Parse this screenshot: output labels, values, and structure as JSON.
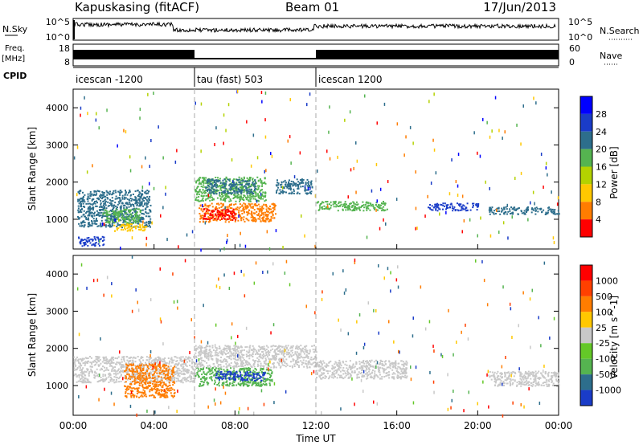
{
  "header": {
    "station": "Kapuskasing (fitACF)",
    "beam": "Beam 01",
    "date": "17/Jun/2013"
  },
  "strips": {
    "nsky_label": "N.Sky",
    "nsky_ticks": [
      "10^5",
      "10^0"
    ],
    "nsearch_label": "N.Search",
    "nsearch_ticks": [
      "10^5",
      "10^0"
    ],
    "freq_label_1": "Freq.",
    "freq_label_2": "[MHz]",
    "freq_ticks": [
      "18",
      "8"
    ],
    "nave_label": "Nave",
    "nave_ticks": [
      "60",
      "0"
    ],
    "cpid_label": "CPID",
    "cpid_segments": [
      {
        "label": "icescan -1200",
        "start_h": 0,
        "end_h": 6
      },
      {
        "label": "tau (fast) 503",
        "start_h": 6,
        "end_h": 12
      },
      {
        "label": "icescan 1200",
        "start_h": 12,
        "end_h": 24
      }
    ]
  },
  "chart_data": [
    {
      "type": "heatmap",
      "name": "power",
      "ylabel": "Slant Range [km]",
      "ylim": [
        200,
        4500
      ],
      "yticks": [
        "1000",
        "2000",
        "3000",
        "4000"
      ],
      "colorbar_label": "Power [dB]",
      "colorbar_ticks": [
        "28",
        "24",
        "20",
        "16",
        "12",
        "8",
        "4"
      ],
      "colors": [
        "#ff0000",
        "#ff7d00",
        "#ffc800",
        "#b4d200",
        "#55b450",
        "#2d6e8c",
        "#1a3cc8",
        "#0000ff"
      ],
      "blobs": [
        {
          "t": [
            0.2,
            3.8
          ],
          "r": [
            800,
            1800
          ],
          "color": "#2d6e8c"
        },
        {
          "t": [
            1.5,
            3.3
          ],
          "r": [
            900,
            1300
          ],
          "color": "#55b450"
        },
        {
          "t": [
            2.0,
            3.6
          ],
          "r": [
            700,
            900
          ],
          "color": "#ffc800"
        },
        {
          "t": [
            0.2,
            1.5
          ],
          "r": [
            300,
            550
          ],
          "color": "#1a3cc8"
        },
        {
          "t": [
            6.2,
            10.0
          ],
          "r": [
            950,
            1450
          ],
          "color": "#ff7d00"
        },
        {
          "t": [
            6.4,
            8.0
          ],
          "r": [
            1000,
            1300
          ],
          "color": "#ff0000"
        },
        {
          "t": [
            6.0,
            9.5
          ],
          "r": [
            1500,
            2150
          ],
          "color": "#55b450"
        },
        {
          "t": [
            6.5,
            9.0
          ],
          "r": [
            1700,
            2100
          ],
          "color": "#2d6e8c"
        },
        {
          "t": [
            10.0,
            11.8
          ],
          "r": [
            1700,
            2100
          ],
          "color": "#2d6e8c"
        },
        {
          "t": [
            12.0,
            15.5
          ],
          "r": [
            1250,
            1500
          ],
          "color": "#55b450"
        },
        {
          "t": [
            17.5,
            20.0
          ],
          "r": [
            1250,
            1450
          ],
          "color": "#1a3cc8"
        },
        {
          "t": [
            20.5,
            24.0
          ],
          "r": [
            1150,
            1350
          ],
          "color": "#2d6e8c"
        }
      ]
    },
    {
      "type": "heatmap",
      "name": "velocity",
      "xlabel": "Time UT",
      "xlim": [
        0,
        24
      ],
      "xticks": [
        "00:00",
        "04:00",
        "08:00",
        "12:00",
        "16:00",
        "20:00",
        "00:00"
      ],
      "ylabel": "Slant Range [km]",
      "ylim": [
        200,
        4500
      ],
      "yticks": [
        "1000",
        "2000",
        "3000",
        "4000"
      ],
      "colorbar_label": "Velocity [m s^-1]",
      "colorbar_ticks": [
        "1000",
        "500",
        "100",
        "25",
        "-25",
        "-100",
        "-500",
        "-1000"
      ],
      "colors": [
        "#1a3cc8",
        "#2d6e8c",
        "#55b450",
        "#64c828",
        "#c8c8c8",
        "#ffc800",
        "#ff7d00",
        "#ff4000",
        "#ff0000"
      ],
      "blobs": [
        {
          "t": [
            0.0,
            6.0
          ],
          "r": [
            1100,
            1800
          ],
          "color": "#c8c8c8"
        },
        {
          "t": [
            2.5,
            5.0
          ],
          "r": [
            700,
            1600
          ],
          "color": "#ff7d00"
        },
        {
          "t": [
            6.0,
            9.8
          ],
          "r": [
            1000,
            1500
          ],
          "color": "#55b450"
        },
        {
          "t": [
            7.0,
            9.5
          ],
          "r": [
            1150,
            1400
          ],
          "color": "#1a3cc8"
        },
        {
          "t": [
            6.0,
            12.0
          ],
          "r": [
            1500,
            2100
          ],
          "color": "#c8c8c8"
        },
        {
          "t": [
            12.0,
            16.5
          ],
          "r": [
            1200,
            1700
          ],
          "color": "#c8c8c8"
        },
        {
          "t": [
            20.5,
            24.0
          ],
          "r": [
            1000,
            1400
          ],
          "color": "#c8c8c8"
        }
      ]
    }
  ]
}
